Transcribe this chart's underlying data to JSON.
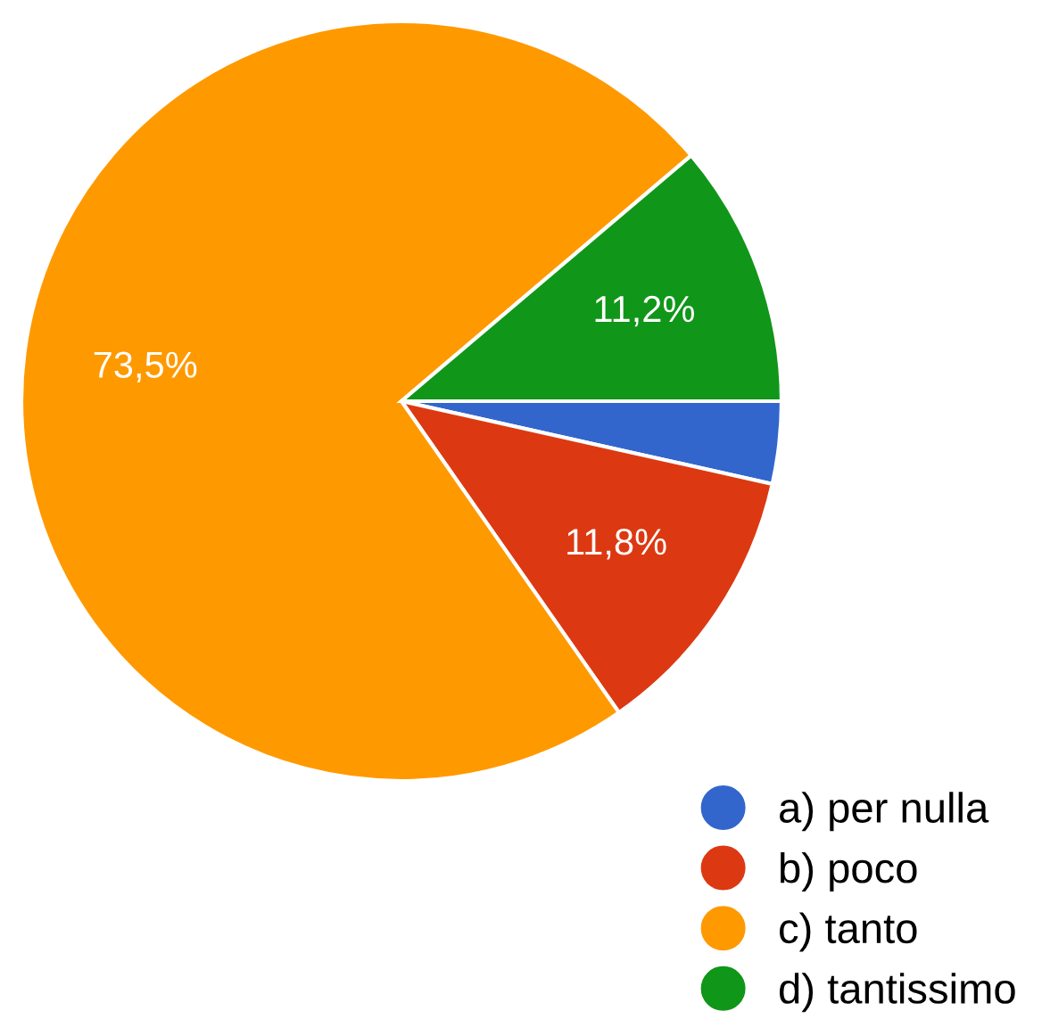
{
  "chart_data": {
    "type": "pie",
    "categories": [
      "a) per nulla",
      "b) poco",
      "c) tanto",
      "d) tantissimo"
    ],
    "values": [
      3.5,
      11.8,
      73.5,
      11.2
    ],
    "colors": [
      "#3366cc",
      "#dc3912",
      "#ff9900",
      "#109618"
    ],
    "value_labels": [
      null,
      "11,8%",
      "73,5%",
      "11,2%"
    ],
    "legend": "bottom right"
  }
}
